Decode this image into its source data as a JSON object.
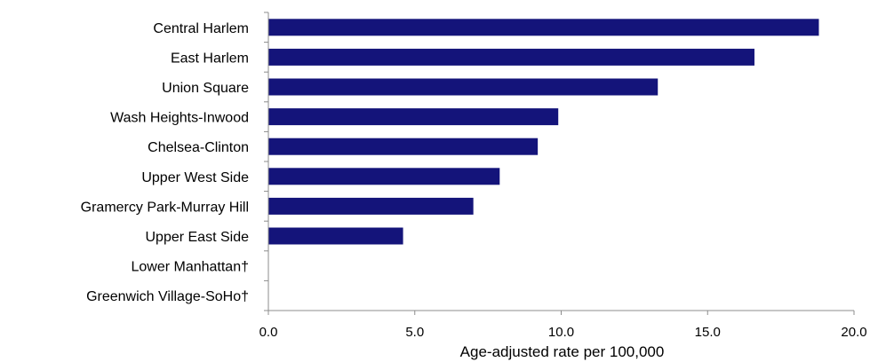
{
  "chart_data": {
    "type": "bar",
    "orientation": "horizontal",
    "categories": [
      "Central Harlem",
      "East Harlem",
      "Union Square",
      "Wash Heights-Inwood",
      "Chelsea-Clinton",
      "Upper West Side",
      "Gramercy Park-Murray Hill",
      "Upper East Side",
      "Lower Manhattan†",
      "Greenwich Village-SoHo†"
    ],
    "values": [
      18.8,
      16.6,
      13.3,
      9.9,
      9.2,
      7.9,
      7.0,
      4.6,
      null,
      null
    ],
    "xlabel": "Age-adjusted rate per 100,000",
    "ylabel": "",
    "xlim": [
      0,
      20
    ],
    "xticks": [
      "0.0",
      "5.0",
      "10.0",
      "15.0",
      "20.0"
    ],
    "bar_color": "#14147a",
    "grid": false,
    "legend": "none"
  }
}
